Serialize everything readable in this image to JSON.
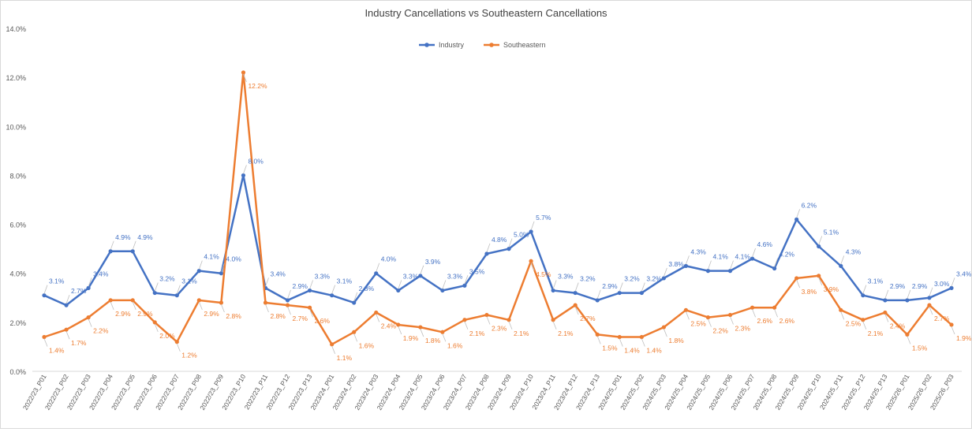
{
  "chart_data": {
    "type": "line",
    "title": "Industry Cancellations vs Southeastern Cancellations",
    "xlabel": "",
    "ylabel": "",
    "ylim": [
      0,
      14
    ],
    "y_ticks": [
      "0.0%",
      "2.0%",
      "4.0%",
      "6.0%",
      "8.0%",
      "10.0%",
      "12.0%",
      "14.0%"
    ],
    "grid": false,
    "legend_position": "top-center",
    "categories": [
      "2022/23_P01",
      "2022/23_P02",
      "2022/23_P03",
      "2022/23_P04",
      "2022/23_P05",
      "2022/23_P06",
      "2022/23_P07",
      "2022/23_P08",
      "2022/23_P09",
      "2022/23_P10",
      "2022/23_P11",
      "2022/23_P12",
      "2022/23_P13",
      "2023/24_P01",
      "2023/24_P02",
      "2023/24_P03",
      "2023/24_P04",
      "2023/24_P05",
      "2023/24_P06",
      "2023/24_P07",
      "2023/24_P08",
      "2023/24_P09",
      "2023/24_P10",
      "2023/24_P11",
      "2023/24_P12",
      "2023/24_P13",
      "2024/25_P01",
      "2024/25_P02",
      "2024/25_P03",
      "2024/25_P04",
      "2024/25_P05",
      "2024/25_P06",
      "2024/25_P07",
      "2024/25_P08",
      "2024/25_P09",
      "2024/25_P10",
      "2024/25_P11",
      "2024/25_P12",
      "2024/25_P13",
      "2025/26_P01",
      "2025/26_P02",
      "2025/26_P03"
    ],
    "series": [
      {
        "name": "Industry",
        "color": "#4472c4",
        "values": [
          3.1,
          2.7,
          3.4,
          4.9,
          4.9,
          3.2,
          3.1,
          4.1,
          4.0,
          8.0,
          3.4,
          2.9,
          3.3,
          3.1,
          2.8,
          4.0,
          3.3,
          3.9,
          3.3,
          3.5,
          4.8,
          5.0,
          5.7,
          3.3,
          3.2,
          2.9,
          3.2,
          3.2,
          3.8,
          4.3,
          4.1,
          4.1,
          4.6,
          4.2,
          6.2,
          5.1,
          4.3,
          3.1,
          2.9,
          2.9,
          3.0,
          3.4
        ],
        "labels": [
          "3.1%",
          "2.7%",
          "3.4%",
          "4.9%",
          "4.9%",
          "3.2%",
          "3.1%",
          "4.1%",
          "4.0%",
          "8.0%",
          "3.4%",
          "2.9%",
          "3.3%",
          "3.1%",
          "2.8%",
          "4.0%",
          "3.3%",
          "3.9%",
          "3.3%",
          "3.5%",
          "4.8%",
          "5.0%",
          "5.7%",
          "3.3%",
          "3.2%",
          "2.9%",
          "3.2%",
          "3.2%",
          "3.8%",
          "4.3%",
          "4.1%",
          "4.1%",
          "4.6%",
          "4.2%",
          "6.2%",
          "5.1%",
          "4.3%",
          "3.1%",
          "2.9%",
          "2.9%",
          "3.0%",
          "3.4%"
        ]
      },
      {
        "name": "Southeastern",
        "color": "#ed7d31",
        "values": [
          1.4,
          1.7,
          2.2,
          2.9,
          2.9,
          2.0,
          1.2,
          2.9,
          2.8,
          12.2,
          2.8,
          2.7,
          2.6,
          1.1,
          1.6,
          2.4,
          1.9,
          1.8,
          1.6,
          2.1,
          2.3,
          2.1,
          4.5,
          2.1,
          2.7,
          1.5,
          1.4,
          1.4,
          1.8,
          2.5,
          2.2,
          2.3,
          2.6,
          2.6,
          3.8,
          3.9,
          2.5,
          2.1,
          2.4,
          1.5,
          2.7,
          1.9
        ],
        "labels": [
          "1.4%",
          "1.7%",
          "2.2%",
          "2.9%",
          "2.9%",
          "2.0%",
          "1.2%",
          "2.9%",
          "2.8%",
          "12.2%",
          "2.8%",
          "2.7%",
          "2.6%",
          "1.1%",
          "1.6%",
          "2.4%",
          "1.9%",
          "1.8%",
          "1.6%",
          "2.1%",
          "2.3%",
          "2.1%",
          "4.5%",
          "2.1%",
          "2.7%",
          "1.5%",
          "1.4%",
          "1.4%",
          "1.8%",
          "2.5%",
          "2.2%",
          "2.3%",
          "2.6%",
          "2.6%",
          "3.8%",
          "3.9%",
          "2.5%",
          "2.1%",
          "2.4%",
          "1.5%",
          "2.7%",
          "1.9%"
        ]
      }
    ]
  }
}
